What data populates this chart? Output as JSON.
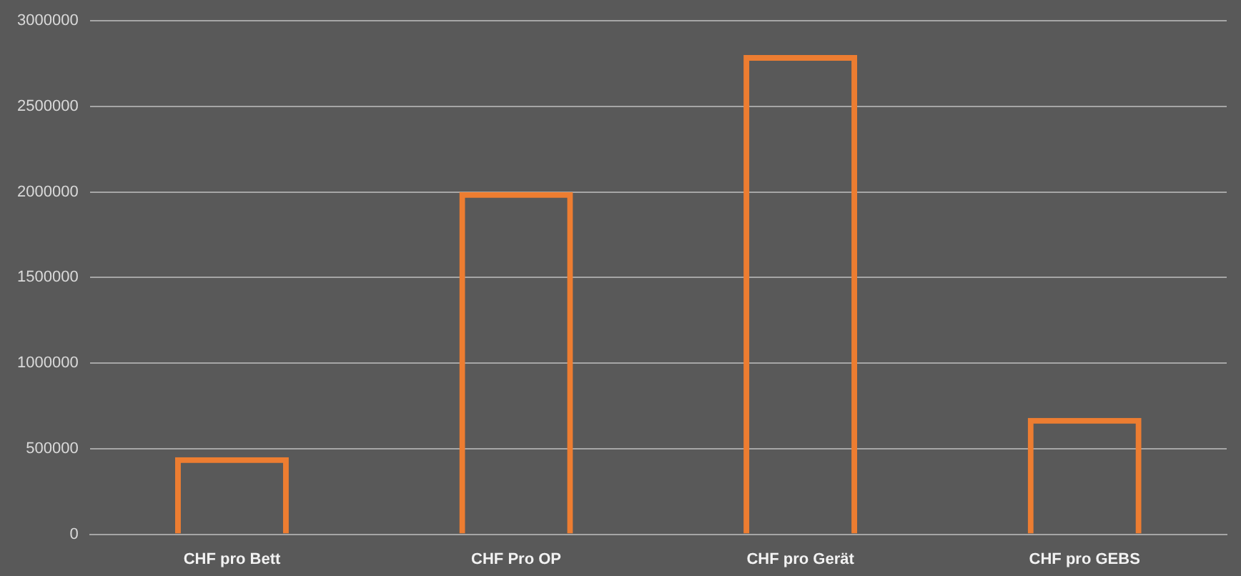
{
  "chart_data": {
    "type": "bar",
    "categories": [
      "CHF pro Bett",
      "CHF Pro OP",
      "CHF pro Gerät",
      "CHF pro GEBS"
    ],
    "values": [
      450000,
      2000000,
      2800000,
      680000
    ],
    "color": "#ed7d31",
    "ylim": [
      0,
      3000000
    ],
    "yticks": [
      0,
      500000,
      1000000,
      1500000,
      2000000,
      2500000,
      3000000
    ],
    "grid": "y",
    "legend": false
  }
}
